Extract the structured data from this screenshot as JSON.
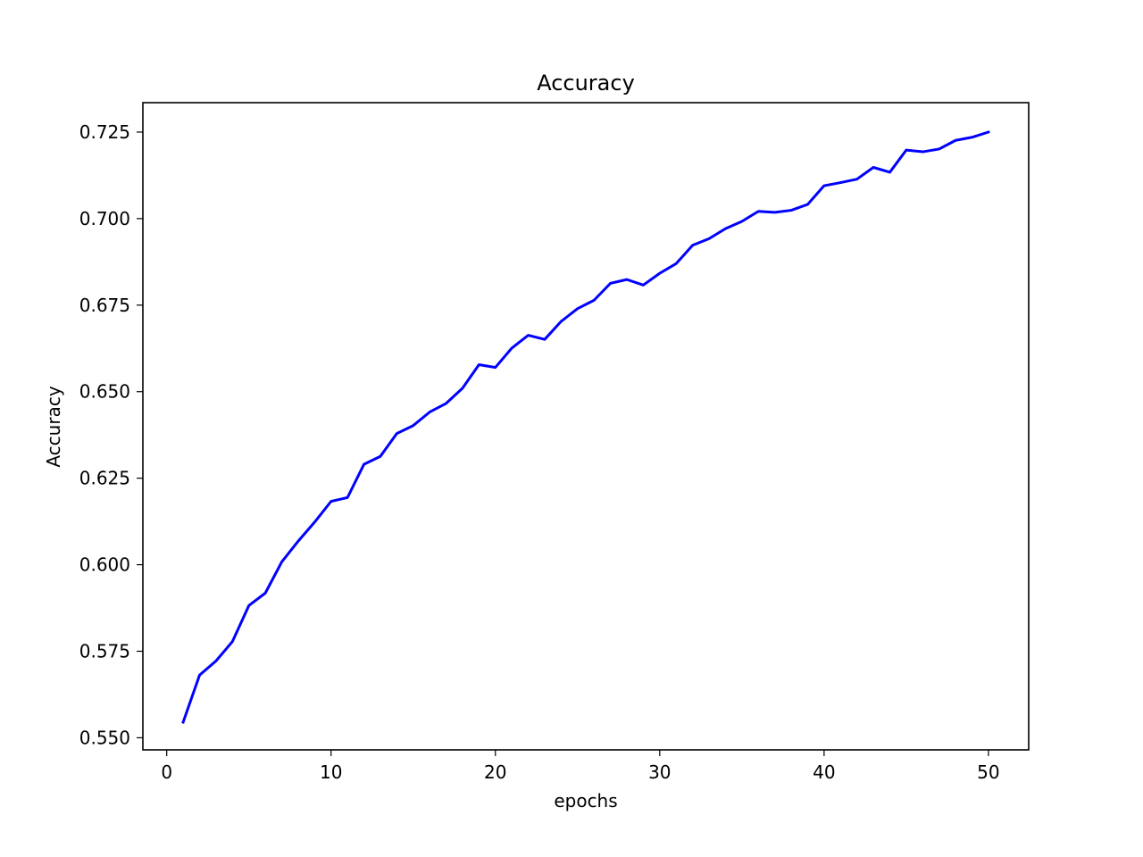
{
  "chart_data": {
    "type": "line",
    "title": "Accuracy",
    "xlabel": "epochs",
    "ylabel": "Accuracy",
    "xlim": [
      -1.45,
      52.45
    ],
    "ylim": [
      0.5465,
      0.7335
    ],
    "xticks": [
      0,
      10,
      20,
      30,
      40,
      50
    ],
    "yticks": [
      0.55,
      0.575,
      0.6,
      0.625,
      0.65,
      0.675,
      0.7,
      0.725
    ],
    "xtick_labels": [
      "0",
      "10",
      "20",
      "30",
      "40",
      "50"
    ],
    "ytick_labels": [
      "0.550",
      "0.575",
      "0.600",
      "0.625",
      "0.650",
      "0.675",
      "0.700",
      "0.725"
    ],
    "grid": false,
    "series": [
      {
        "color": "#0000ff",
        "x": [
          1,
          2,
          3,
          4,
          5,
          6,
          7,
          8,
          9,
          10,
          11,
          12,
          13,
          14,
          15,
          16,
          17,
          18,
          19,
          20,
          21,
          22,
          23,
          24,
          25,
          26,
          27,
          28,
          29,
          30,
          31,
          32,
          33,
          34,
          35,
          36,
          37,
          38,
          39,
          40,
          41,
          42,
          43,
          44,
          45,
          46,
          47,
          48,
          49,
          50
        ],
        "y": [
          0.5545,
          0.5681,
          0.5722,
          0.5778,
          0.5882,
          0.5918,
          0.6008,
          0.6068,
          0.6123,
          0.6183,
          0.6194,
          0.629,
          0.6313,
          0.6379,
          0.6402,
          0.6441,
          0.6466,
          0.651,
          0.6578,
          0.657,
          0.6626,
          0.6663,
          0.6651,
          0.6703,
          0.674,
          0.6764,
          0.6813,
          0.6824,
          0.6808,
          0.6842,
          0.687,
          0.6923,
          0.6942,
          0.6971,
          0.6992,
          0.7021,
          0.7018,
          0.7024,
          0.7041,
          0.7095,
          0.7104,
          0.7114,
          0.7148,
          0.7134,
          0.7198,
          0.7193,
          0.7201,
          0.7226,
          0.7235,
          0.725
        ]
      }
    ]
  }
}
